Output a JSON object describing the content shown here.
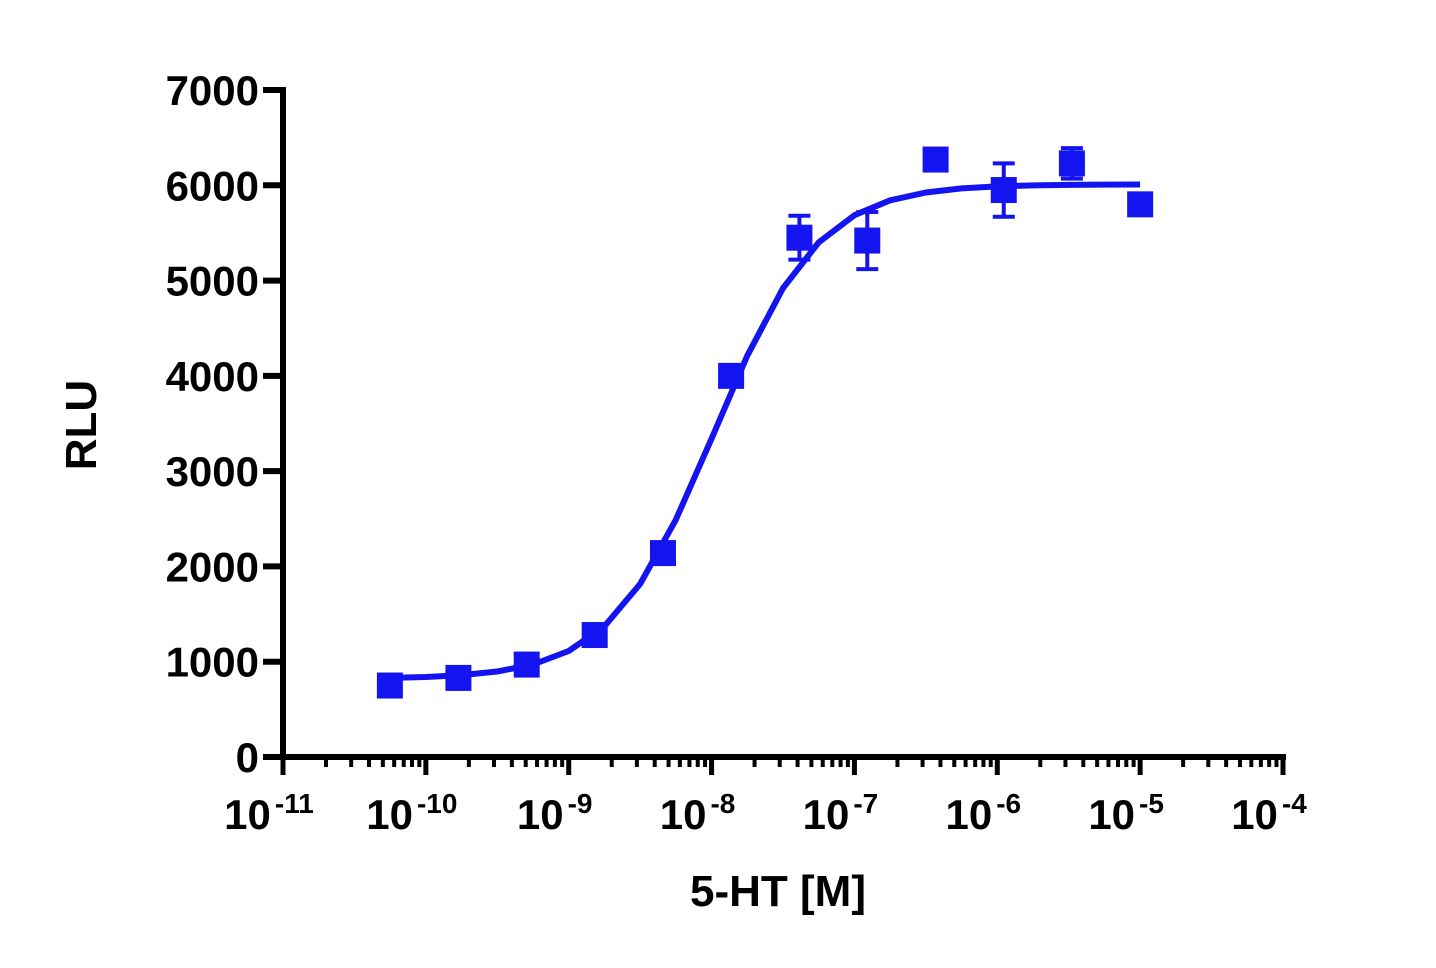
{
  "chart_data": {
    "type": "scatter",
    "x_label": "5-HT [M]",
    "y_label": "RLU",
    "x_log": true,
    "xlim": [
      1e-11,
      0.0001
    ],
    "xticks": [
      {
        "value": 1e-11,
        "label": "10",
        "exponent": "-11"
      },
      {
        "value": 1e-10,
        "label": "10",
        "exponent": "-10"
      },
      {
        "value": 1e-09,
        "label": "10",
        "exponent": "-9"
      },
      {
        "value": 1e-08,
        "label": "10",
        "exponent": "-8"
      },
      {
        "value": 1e-07,
        "label": "10",
        "exponent": "-7"
      },
      {
        "value": 1e-06,
        "label": "10",
        "exponent": "-6"
      },
      {
        "value": 1e-05,
        "label": "10",
        "exponent": "-5"
      },
      {
        "value": 0.0001,
        "label": "10",
        "exponent": "-4"
      }
    ],
    "ylim": [
      0,
      7000
    ],
    "yticks": [
      0,
      1000,
      2000,
      3000,
      4000,
      5000,
      6000,
      7000
    ],
    "color": "#1414f0",
    "x": [
      5.6e-11,
      1.69e-10,
      5.08e-10,
      1.52e-09,
      4.57e-09,
      1.37e-08,
      4.12e-08,
      1.23e-07,
      3.7e-07,
      1.11e-06,
      3.33e-06,
      1e-05
    ],
    "values": [
      750,
      830,
      970,
      1280,
      2140,
      4000,
      5450,
      5420,
      6270,
      5950,
      6230,
      5800
    ],
    "errors": [
      40,
      40,
      40,
      60,
      50,
      60,
      230,
      300,
      60,
      280,
      160,
      60
    ],
    "fit": {
      "x": [
        5.6e-11,
        1e-10,
        1.78e-10,
        3.16e-10,
        5.62e-10,
        1e-09,
        1.78e-09,
        3.16e-09,
        5.62e-09,
        1e-08,
        1.78e-08,
        3.16e-08,
        5.62e-08,
        1e-07,
        1.78e-07,
        3.16e-07,
        5.62e-07,
        1e-06,
        1.78e-06,
        3.16e-06,
        5.62e-06,
        1e-05
      ],
      "values": [
        830,
        840,
        859,
        897,
        971,
        1112,
        1373,
        1816,
        2489,
        3342,
        4212,
        4921,
        5401,
        5686,
        5842,
        5924,
        5967,
        5988,
        5999,
        6004,
        6007,
        6008
      ]
    }
  }
}
